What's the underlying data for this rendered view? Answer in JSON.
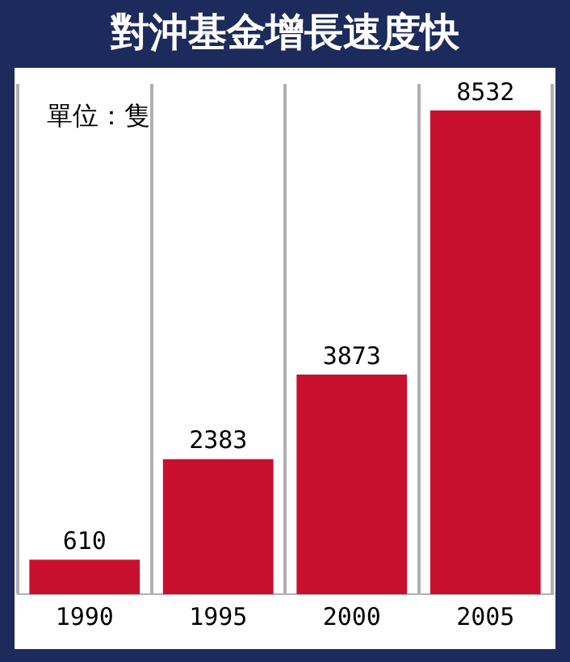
{
  "chart_data": {
    "type": "bar",
    "title": "對沖基金增長速度快",
    "annotations": [
      "單位：隻"
    ],
    "categories": [
      "1990",
      "1995",
      "2000",
      "2005"
    ],
    "values": [
      610,
      2383,
      3873,
      8532
    ],
    "color": "#c8102e",
    "data_labels": true,
    "grid": "x",
    "tick_labels": "x",
    "legend": false
  }
}
